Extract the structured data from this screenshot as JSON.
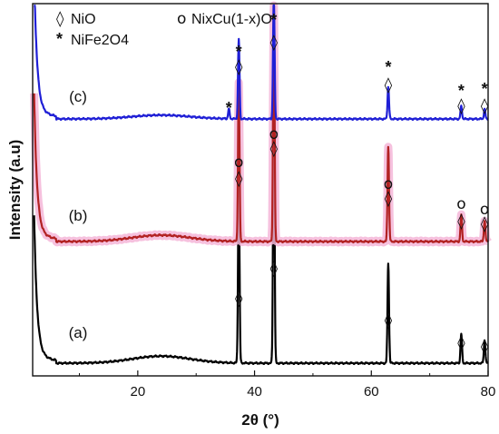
{
  "chart_data": {
    "type": "line",
    "title": "",
    "xlabel": "2θ (°)",
    "ylabel": "Intensity (a.u)",
    "xlim": [
      2,
      80
    ],
    "x_ticks": [
      20,
      40,
      60,
      80
    ],
    "x_tick_labels": [
      "20",
      "40",
      "60",
      "80"
    ],
    "y_ticks_shown": false,
    "legend_position": "top-left",
    "legend": [
      {
        "symbol": "◊",
        "label": "NiO"
      },
      {
        "symbol": "o",
        "label": "NixCu(1-x)O"
      },
      {
        "symbol": "*",
        "label": "NiFe2O4"
      }
    ],
    "series": [
      {
        "label": "(a)",
        "color": "#000000",
        "baseline": 0.04,
        "peaks": [
          {
            "two_theta": 37.3,
            "height": 0.3
          },
          {
            "two_theta": 43.3,
            "height": 0.45
          },
          {
            "two_theta": 62.9,
            "height": 0.17
          },
          {
            "two_theta": 75.4,
            "height": 0.05
          },
          {
            "two_theta": 79.4,
            "height": 0.04
          }
        ],
        "markers": [
          {
            "two_theta": 37.3,
            "symbols": [
              "◊"
            ]
          },
          {
            "two_theta": 43.3,
            "symbols": [
              "◊"
            ]
          },
          {
            "two_theta": 62.9,
            "symbols": [
              "◊"
            ]
          },
          {
            "two_theta": 75.4,
            "symbols": [
              "◊"
            ]
          },
          {
            "two_theta": 79.4,
            "symbols": [
              "◊"
            ]
          }
        ]
      },
      {
        "label": "(b)",
        "color": "#b22222",
        "shadow": "#f4b6d8",
        "baseline": 0.02,
        "peaks": [
          {
            "two_theta": 37.3,
            "height": 0.3
          },
          {
            "two_theta": 43.3,
            "height": 0.45
          },
          {
            "two_theta": 62.9,
            "height": 0.18
          },
          {
            "two_theta": 75.4,
            "height": 0.05
          },
          {
            "two_theta": 79.4,
            "height": 0.04
          }
        ],
        "markers": [
          {
            "two_theta": 37.3,
            "symbols": [
              "o",
              "◊"
            ]
          },
          {
            "two_theta": 43.3,
            "symbols": [
              "o",
              "◊"
            ]
          },
          {
            "two_theta": 62.9,
            "symbols": [
              "o",
              "◊"
            ]
          },
          {
            "two_theta": 75.4,
            "symbols": [
              "o",
              "◊"
            ]
          },
          {
            "two_theta": 79.4,
            "symbols": [
              "o",
              "◊"
            ]
          }
        ]
      },
      {
        "label": "(c)",
        "color": "#1f1fd6",
        "baseline": 0.0,
        "peaks": [
          {
            "two_theta": 35.6,
            "height": 0.03
          },
          {
            "two_theta": 37.3,
            "height": 0.25
          },
          {
            "two_theta": 43.3,
            "height": 0.4
          },
          {
            "two_theta": 62.9,
            "height": 0.1
          },
          {
            "two_theta": 75.4,
            "height": 0.04
          },
          {
            "two_theta": 79.4,
            "height": 0.03
          }
        ],
        "markers": [
          {
            "two_theta": 35.6,
            "symbols": [
              "*"
            ]
          },
          {
            "two_theta": 37.3,
            "symbols": [
              "*",
              "◊"
            ]
          },
          {
            "two_theta": 43.3,
            "symbols": [
              "*",
              "◊"
            ]
          },
          {
            "two_theta": 62.9,
            "symbols": [
              "*",
              "◊"
            ]
          },
          {
            "two_theta": 75.4,
            "symbols": [
              "*",
              "◊"
            ]
          },
          {
            "two_theta": 79.4,
            "symbols": [
              "*",
              "◊"
            ]
          }
        ]
      }
    ]
  }
}
